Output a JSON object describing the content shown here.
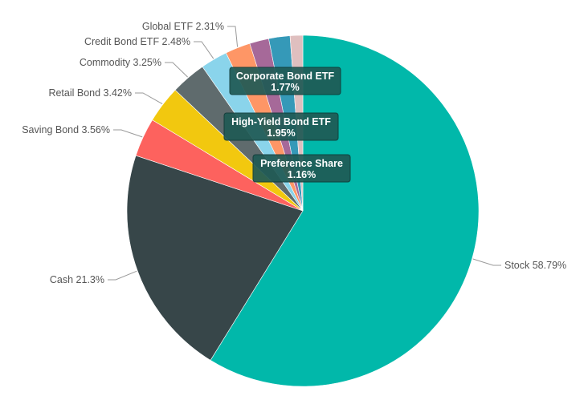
{
  "chart_data": {
    "type": "pie",
    "slices": [
      {
        "label": "Stock",
        "value": 58.79,
        "display": "Stock 58.79%",
        "color": "#01B8AA"
      },
      {
        "label": "Cash",
        "value": 21.3,
        "display": "Cash 21.3%",
        "color": "#374649"
      },
      {
        "label": "Saving Bond",
        "value": 3.56,
        "display": "Saving Bond 3.56%",
        "color": "#FD625E"
      },
      {
        "label": "Retail Bond",
        "value": 3.42,
        "display": "Retail Bond 3.42%",
        "color": "#F2C80F"
      },
      {
        "label": "Commodity",
        "value": 3.25,
        "display": "Commodity 3.25%",
        "color": "#5F6B6D"
      },
      {
        "label": "Credit Bond ETF",
        "value": 2.48,
        "display": "Credit Bond ETF 2.48%",
        "color": "#8AD4EB"
      },
      {
        "label": "Global ETF",
        "value": 2.31,
        "display": "Global ETF 2.31%",
        "color": "#FE9666"
      },
      {
        "label": "Corporate Bond ETF",
        "value": 1.77,
        "display": "1.77%",
        "color": "#A66999"
      },
      {
        "label": "High-Yield Bond ETF",
        "value": 1.95,
        "display": "1.95%",
        "color": "#3599B8"
      },
      {
        "label": "Preference Share",
        "value": 1.16,
        "display": "1.16%",
        "color": "#DFBFBF"
      }
    ]
  }
}
